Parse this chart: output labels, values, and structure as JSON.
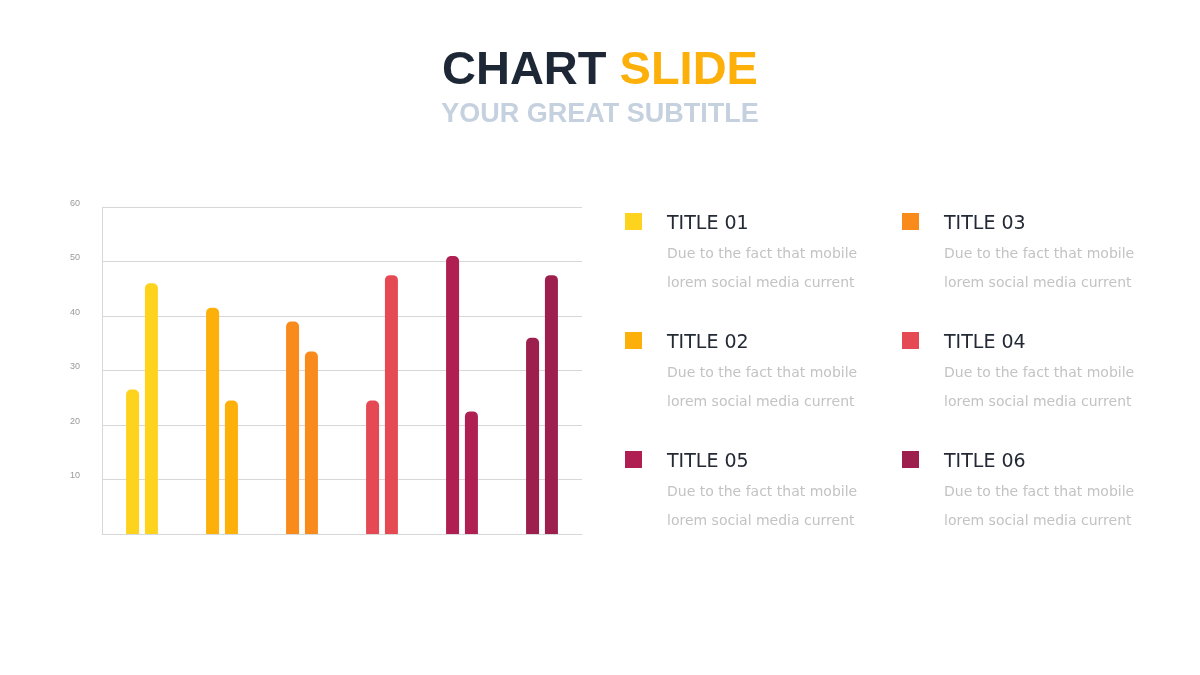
{
  "chart_data": {
    "type": "bar",
    "title": "CHART SLIDE",
    "subtitle": "YOUR GREAT SUBTITLE",
    "categories": [
      null,
      null,
      null,
      null,
      null,
      null
    ],
    "series": [
      {
        "colors": [
          "#fdd31e",
          "#fdb00a",
          "#f98a1c",
          "#e54a54",
          "#b01f52",
          "#9c1f4d"
        ],
        "values": [
          26.5,
          41.5,
          39,
          24.5,
          51,
          36
        ]
      },
      {
        "colors": [
          "#fdd31e",
          "#fdb00a",
          "#f98a1c",
          "#e54a54",
          "#b01f52",
          "#9c1f4d"
        ],
        "values": [
          46,
          24.5,
          33.5,
          47.5,
          22.5,
          47.5
        ]
      }
    ],
    "ylim": [
      0,
      60
    ],
    "yticks": [
      10,
      20,
      30,
      40,
      50,
      60
    ],
    "grid": "y",
    "annotations": [
      "TITLE 01",
      "Due to the fact that mobile lorem social media current",
      "TITLE 02",
      "Due to the fact that mobile lorem social media current",
      "TITLE 03",
      "Due to the fact that mobile lorem social media current",
      "TITLE 04",
      "Due to the fact that mobile lorem social media current",
      "TITLE 05",
      "Due to the fact that mobile lorem social media current",
      "TITLE 06",
      "Due to the fact that mobile lorem social media current"
    ]
  }
}
